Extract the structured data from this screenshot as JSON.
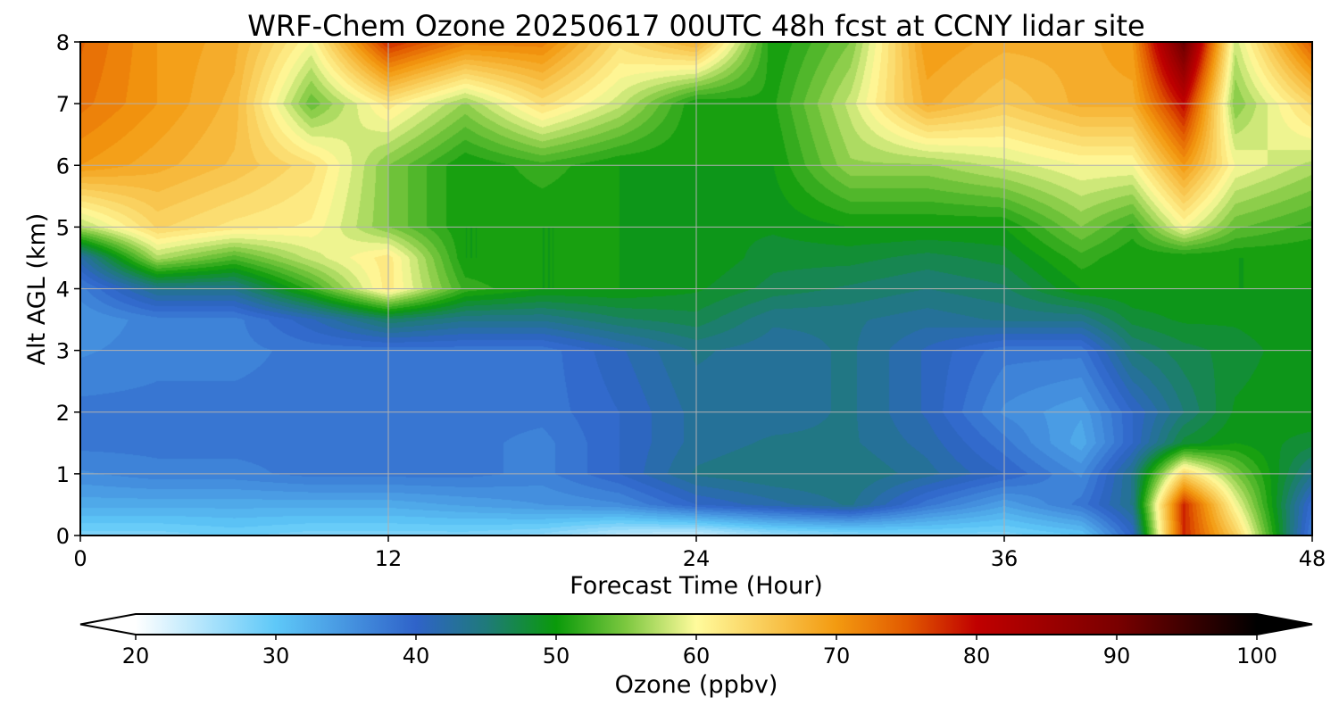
{
  "chart_data": {
    "type": "heatmap",
    "title": "WRF-Chem Ozone  20250617 00UTC 48h fcst at CCNY lidar site",
    "xlabel": "Forecast Time (Hour)",
    "ylabel": "Alt AGL (km)",
    "xlim": [
      0,
      48
    ],
    "ylim": [
      0,
      8
    ],
    "xticks": [
      "0",
      "12",
      "24",
      "36",
      "48"
    ],
    "yticks": [
      "0",
      "1",
      "2",
      "3",
      "4",
      "5",
      "6",
      "7",
      "8"
    ],
    "grid": true,
    "colorbar": {
      "label": "Ozone  (ppbv)",
      "range": [
        20,
        100
      ],
      "ticks": [
        "20",
        "30",
        "40",
        "50",
        "60",
        "70",
        "80",
        "90",
        "100"
      ],
      "extend": "both",
      "stops": [
        {
          "v": 20,
          "c": "#ffffff"
        },
        {
          "v": 30,
          "c": "#5ec8f8"
        },
        {
          "v": 40,
          "c": "#2f63c9"
        },
        {
          "v": 45,
          "c": "#1f7a7a"
        },
        {
          "v": 50,
          "c": "#0a9a0a"
        },
        {
          "v": 55,
          "c": "#7dc840"
        },
        {
          "v": 60,
          "c": "#fffb9c"
        },
        {
          "v": 70,
          "c": "#f39a10"
        },
        {
          "v": 75,
          "c": "#e25a00"
        },
        {
          "v": 80,
          "c": "#c00000"
        },
        {
          "v": 90,
          "c": "#7a0000"
        },
        {
          "v": 100,
          "c": "#000000"
        }
      ]
    },
    "altitudes_km": [
      0,
      0.5,
      1,
      1.5,
      2,
      3,
      3.5,
      4,
      4.5,
      5,
      6,
      7,
      8
    ],
    "x": [
      0,
      3,
      6,
      9,
      12,
      15,
      18,
      21,
      24,
      27,
      30,
      33,
      36,
      39,
      41,
      43,
      45,
      48
    ],
    "ozone_ppbv": [
      [
        28,
        33,
        36,
        38,
        38,
        36,
        35,
        37,
        42,
        57,
        70,
        73,
        74
      ],
      [
        28,
        33,
        37,
        38,
        38,
        37,
        37,
        44,
        57,
        64,
        68,
        70,
        70
      ],
      [
        29,
        33,
        37,
        38,
        38,
        37,
        37,
        44,
        53,
        62,
        66,
        67,
        68
      ],
      [
        28,
        33,
        38,
        38,
        38,
        38,
        41,
        52,
        58,
        61,
        63,
        54,
        60
      ],
      [
        28,
        33,
        38,
        38,
        38,
        38,
        46,
        62,
        62,
        55,
        55,
        62,
        78
      ],
      [
        28,
        34,
        38,
        38,
        38,
        38,
        44,
        52,
        50,
        50,
        50,
        56,
        72
      ],
      [
        27,
        35,
        37,
        37,
        38,
        38,
        44,
        50,
        50,
        50,
        52,
        63,
        72
      ],
      [
        24,
        36,
        40,
        40,
        40,
        41,
        46,
        50,
        50,
        50,
        50,
        58,
        63
      ],
      [
        23,
        40,
        44,
        43,
        43,
        44,
        47,
        49,
        50,
        49,
        50,
        50,
        68
      ],
      [
        26,
        42,
        45,
        44,
        43,
        43,
        44,
        47,
        48,
        49,
        50,
        51,
        50
      ],
      [
        27,
        44,
        45,
        44,
        44,
        44,
        44,
        46,
        48,
        50,
        56,
        58,
        55
      ],
      [
        28,
        38,
        43,
        42,
        41,
        41,
        43,
        45,
        47,
        50,
        56,
        68,
        70
      ],
      [
        28,
        34,
        40,
        38,
        36,
        38,
        44,
        46,
        48,
        50,
        58,
        65,
        68
      ],
      [
        30,
        38,
        36,
        33,
        34,
        38,
        44,
        50,
        52,
        55,
        60,
        68,
        68
      ],
      [
        40,
        44,
        44,
        40,
        40,
        45,
        48,
        50,
        50,
        52,
        60,
        68,
        70
      ],
      [
        78,
        78,
        64,
        48,
        45,
        47,
        49,
        50,
        50,
        60,
        70,
        80,
        92
      ],
      [
        65,
        60,
        55,
        50,
        49,
        48,
        49,
        50,
        50,
        54,
        60,
        55,
        58
      ],
      [
        37,
        39,
        44,
        48,
        50,
        50,
        50,
        50,
        50,
        52,
        57,
        64,
        75
      ]
    ]
  }
}
